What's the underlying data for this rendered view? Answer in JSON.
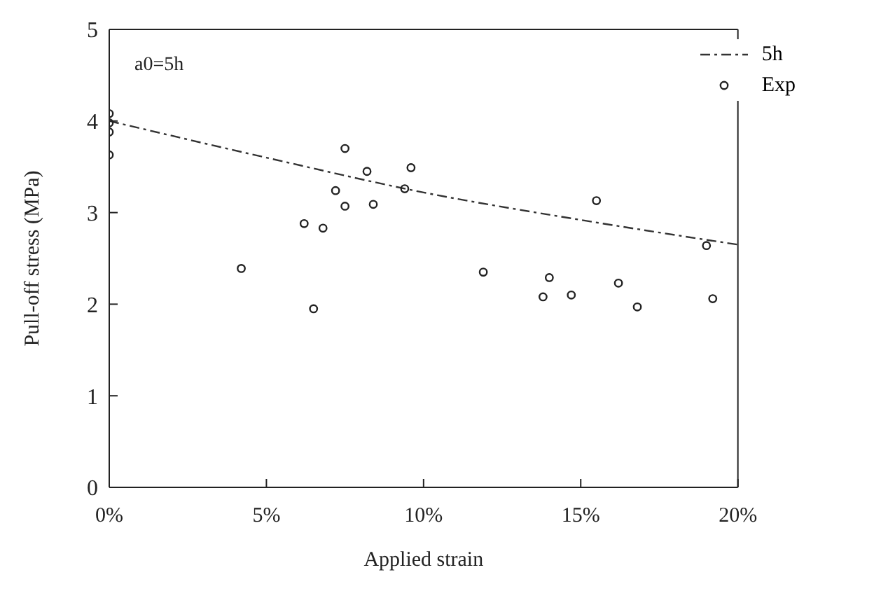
{
  "chart_data": {
    "type": "scatter",
    "xlabel": "Applied strain",
    "ylabel": "Pull-off stress (MPa)",
    "annotations": [
      "a0=5h"
    ],
    "xlim": [
      0,
      20
    ],
    "xticks": [
      {
        "value": 0,
        "label": "0%"
      },
      {
        "value": 5,
        "label": "5%"
      },
      {
        "value": 10,
        "label": "10%"
      },
      {
        "value": 15,
        "label": "15%"
      },
      {
        "value": 20,
        "label": "20%"
      }
    ],
    "ylim": [
      0,
      5
    ],
    "yticks": [
      0,
      1,
      2,
      3,
      4,
      5
    ],
    "grid": false,
    "legend": "top right",
    "series": [
      {
        "name": "5h",
        "type": "line",
        "color": "#333333",
        "line_style": "dashed",
        "marker": "none",
        "x": [
          0,
          5,
          10,
          15,
          20
        ],
        "values": [
          4.0,
          3.6,
          3.22,
          2.92,
          2.65
        ]
      },
      {
        "name": "Exp",
        "color": "#222222",
        "marker": "circle",
        "x": [
          0,
          0,
          0,
          0,
          4.2,
          6.2,
          6.5,
          6.8,
          7.2,
          7.5,
          7.5,
          8.2,
          8.4,
          9.4,
          9.6,
          11.9,
          13.8,
          14.0,
          14.7,
          15.5,
          16.2,
          16.8,
          19.0,
          19.2
        ],
        "values": [
          4.08,
          3.98,
          3.88,
          3.63,
          2.39,
          2.88,
          1.95,
          2.83,
          3.24,
          3.7,
          3.07,
          3.45,
          3.09,
          3.26,
          3.49,
          2.35,
          2.08,
          2.29,
          2.1,
          3.13,
          2.23,
          1.97,
          2.64,
          2.06
        ]
      }
    ]
  }
}
